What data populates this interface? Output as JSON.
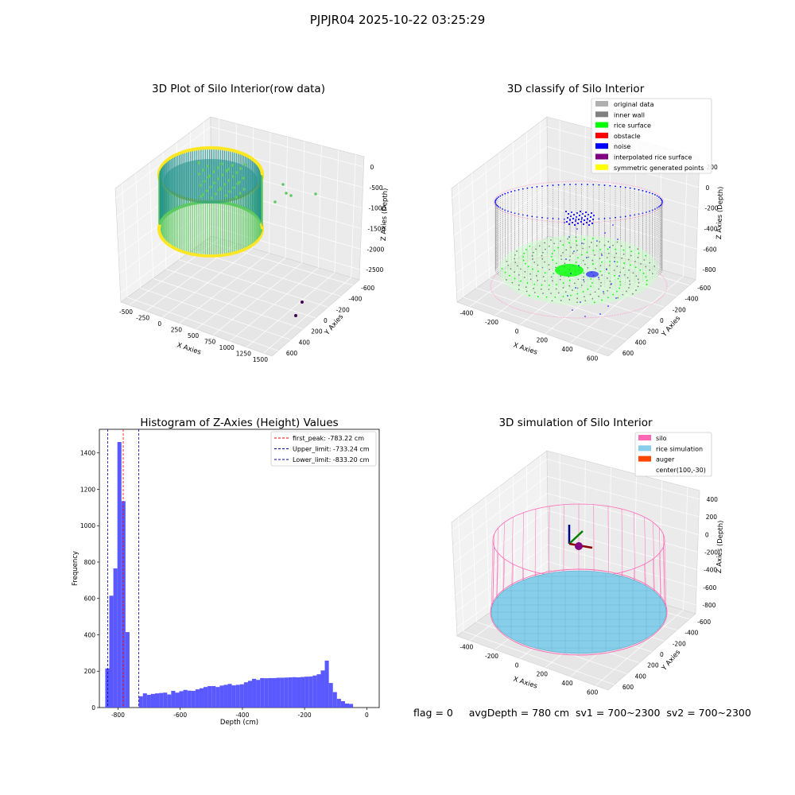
{
  "figure": {
    "suptitle": "PJPJR04 2025-10-22 03:25:29",
    "footer_text": "flag = 0     avgDepth = 780 cm  sv1 = 700~2300  sv2 = 700~2300"
  },
  "chart_data": [
    {
      "id": "raw",
      "type": "scatter3d",
      "title": "3D Plot of Silo Interior(row data)",
      "xlabel": "X Axies",
      "ylabel": "Y Axies",
      "zlabel": "Z Axies (Depth)",
      "xticks": [
        "-500",
        "-250",
        "0",
        "250",
        "500",
        "750",
        "1000",
        "1250",
        "1500"
      ],
      "yticks": [
        "-600",
        "-400",
        "-200",
        "0",
        "200",
        "400",
        "600"
      ],
      "zticks": [
        "0",
        "-500",
        "-1000",
        "-1500",
        "-2000",
        "-2500"
      ],
      "colormap": [
        "#440154",
        "#21918c",
        "#5ec962",
        "#fde725"
      ]
    },
    {
      "id": "classify",
      "type": "scatter3d",
      "title": "3D classify of Silo Interior",
      "xlabel": "X Axies",
      "ylabel": "Y Axies",
      "zlabel": "Z Axies (Depth)",
      "xticks": [
        "-400",
        "-200",
        "0",
        "200",
        "400",
        "600"
      ],
      "yticks": [
        "-600",
        "-400",
        "-200",
        "0",
        "200",
        "400",
        "600"
      ],
      "zticks": [
        "200",
        "0",
        "-200",
        "-400",
        "-600",
        "-800"
      ],
      "legend_position": "top-right",
      "legend": [
        {
          "label": "original data",
          "color": "#b0b0b0"
        },
        {
          "label": "inner wall",
          "color": "#808080"
        },
        {
          "label": "rice surface",
          "color": "#00ff00"
        },
        {
          "label": "obstacle",
          "color": "#ff0000"
        },
        {
          "label": "noise",
          "color": "#0000ff"
        },
        {
          "label": "interpolated rice surface",
          "color": "#800080"
        },
        {
          "label": "symmetric generated points",
          "color": "#ffff00"
        }
      ]
    },
    {
      "id": "histogram",
      "type": "bar",
      "title": "Histogram of Z-Axies (Height) Values",
      "xlabel": "Depth (cm)",
      "ylabel": "Frequency",
      "xlim": [
        -860,
        40
      ],
      "ylim": [
        0,
        1530
      ],
      "xticks": [
        -800,
        -600,
        -400,
        -200,
        0
      ],
      "yticks": [
        0,
        200,
        400,
        600,
        800,
        1000,
        1200,
        1400
      ],
      "bar_color": "#5050ff",
      "bin_width": 13,
      "bins": [
        {
          "x": -841,
          "y": 215
        },
        {
          "x": -828,
          "y": 615
        },
        {
          "x": -815,
          "y": 765
        },
        {
          "x": -802,
          "y": 1460
        },
        {
          "x": -789,
          "y": 1135
        },
        {
          "x": -776,
          "y": 415
        },
        {
          "x": -733,
          "y": 62
        },
        {
          "x": -720,
          "y": 78
        },
        {
          "x": -707,
          "y": 70
        },
        {
          "x": -694,
          "y": 75
        },
        {
          "x": -681,
          "y": 78
        },
        {
          "x": -668,
          "y": 80
        },
        {
          "x": -655,
          "y": 82
        },
        {
          "x": -642,
          "y": 72
        },
        {
          "x": -629,
          "y": 92
        },
        {
          "x": -616,
          "y": 82
        },
        {
          "x": -603,
          "y": 90
        },
        {
          "x": -590,
          "y": 97
        },
        {
          "x": -577,
          "y": 93
        },
        {
          "x": -564,
          "y": 92
        },
        {
          "x": -551,
          "y": 100
        },
        {
          "x": -538,
          "y": 106
        },
        {
          "x": -525,
          "y": 113
        },
        {
          "x": -512,
          "y": 118
        },
        {
          "x": -499,
          "y": 118
        },
        {
          "x": -486,
          "y": 113
        },
        {
          "x": -473,
          "y": 121
        },
        {
          "x": -460,
          "y": 125
        },
        {
          "x": -447,
          "y": 130
        },
        {
          "x": -434,
          "y": 122
        },
        {
          "x": -421,
          "y": 125
        },
        {
          "x": -408,
          "y": 128
        },
        {
          "x": -395,
          "y": 139
        },
        {
          "x": -382,
          "y": 147
        },
        {
          "x": -369,
          "y": 158
        },
        {
          "x": -356,
          "y": 152
        },
        {
          "x": -343,
          "y": 162
        },
        {
          "x": -330,
          "y": 161
        },
        {
          "x": -317,
          "y": 162
        },
        {
          "x": -304,
          "y": 162
        },
        {
          "x": -291,
          "y": 164
        },
        {
          "x": -278,
          "y": 164
        },
        {
          "x": -265,
          "y": 165
        },
        {
          "x": -252,
          "y": 166
        },
        {
          "x": -239,
          "y": 167
        },
        {
          "x": -226,
          "y": 166
        },
        {
          "x": -213,
          "y": 168
        },
        {
          "x": -200,
          "y": 170
        },
        {
          "x": -187,
          "y": 171
        },
        {
          "x": -174,
          "y": 176
        },
        {
          "x": -161,
          "y": 183
        },
        {
          "x": -148,
          "y": 204
        },
        {
          "x": -135,
          "y": 258
        },
        {
          "x": -122,
          "y": 135
        },
        {
          "x": -109,
          "y": 85
        },
        {
          "x": -96,
          "y": 48
        },
        {
          "x": -83,
          "y": 35
        },
        {
          "x": -70,
          "y": 22
        },
        {
          "x": -57,
          "y": 20
        }
      ],
      "vlines": [
        {
          "x": -783.22,
          "color": "#ff0000",
          "label": "first_peak: -783.22 cm"
        },
        {
          "x": -733.24,
          "color": "#0000aa",
          "label": "Upper_limit: -733.24 cm"
        },
        {
          "x": -833.2,
          "color": "#0000aa",
          "label": "Lower_limit: -833.20 cm"
        }
      ],
      "legend_position": "top-right"
    },
    {
      "id": "simulation",
      "type": "surface3d",
      "title": "3D simulation of Silo Interior",
      "xlabel": "X Axies",
      "ylabel": "Y Axies",
      "zlabel": "Z Axies (Depth)",
      "xticks": [
        "-400",
        "-200",
        "0",
        "200",
        "400",
        "600"
      ],
      "yticks": [
        "-600",
        "-400",
        "-200",
        "0",
        "200",
        "400",
        "600"
      ],
      "zticks": [
        "400",
        "200",
        "0",
        "-200",
        "-400",
        "-600",
        "-800"
      ],
      "legend_position": "top-right",
      "legend": [
        {
          "label": "silo",
          "color": "#ff69b4"
        },
        {
          "label": "rice simulation",
          "color": "#87ceeb"
        },
        {
          "label": "auger",
          "color": "#ff4500"
        },
        {
          "label": "center(100,-30)",
          "color": ""
        }
      ]
    }
  ]
}
